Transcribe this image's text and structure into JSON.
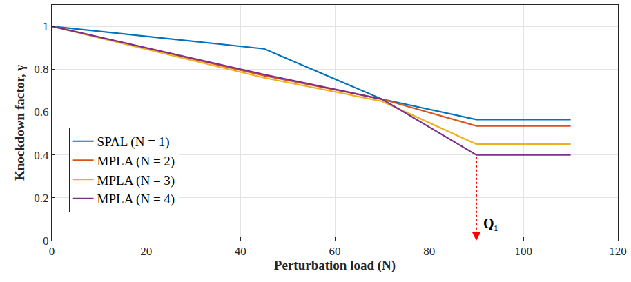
{
  "chart_data": {
    "type": "line",
    "x_label": "Perturbation load (N)",
    "y_label": "Knockdown factor, γ",
    "xlim": [
      0,
      120
    ],
    "xticks": [
      0,
      20,
      40,
      60,
      80,
      100,
      120
    ],
    "ylim": [
      0,
      1.1
    ],
    "yticks": [
      0,
      0.2,
      0.4,
      0.6,
      0.8,
      1
    ],
    "grid": true,
    "legend": "left",
    "series": [
      {
        "name": "SPAL (N = 1)",
        "color": "#0072BD",
        "line_style": "solid",
        "x": [
          0,
          45,
          70,
          90,
          110
        ],
        "values": [
          1,
          0.895,
          0.66,
          0.565,
          0.565
        ]
      },
      {
        "name": "MPLA (N = 2)",
        "color": "#D95319",
        "line_style": "solid",
        "x": [
          0,
          45,
          70,
          90,
          110
        ],
        "values": [
          1,
          0.77,
          0.66,
          0.535,
          0.535
        ]
      },
      {
        "name": "MPLA (N = 3)",
        "color": "#EDB120",
        "line_style": "solid",
        "x": [
          0,
          45,
          70,
          90,
          110
        ],
        "values": [
          1,
          0.76,
          0.65,
          0.45,
          0.45
        ]
      },
      {
        "name": "MPLA (N = 4)",
        "color": "#7E2F8E",
        "line_style": "solid",
        "x": [
          0,
          45,
          70,
          90,
          110
        ],
        "values": [
          1,
          0.775,
          0.66,
          0.4,
          0.4
        ]
      }
    ],
    "annotations": [
      {
        "text": "Q₁",
        "x": 90,
        "y_start": 0.39,
        "y_end": 0,
        "color": "#FF0000",
        "line_style": "dot"
      }
    ]
  }
}
